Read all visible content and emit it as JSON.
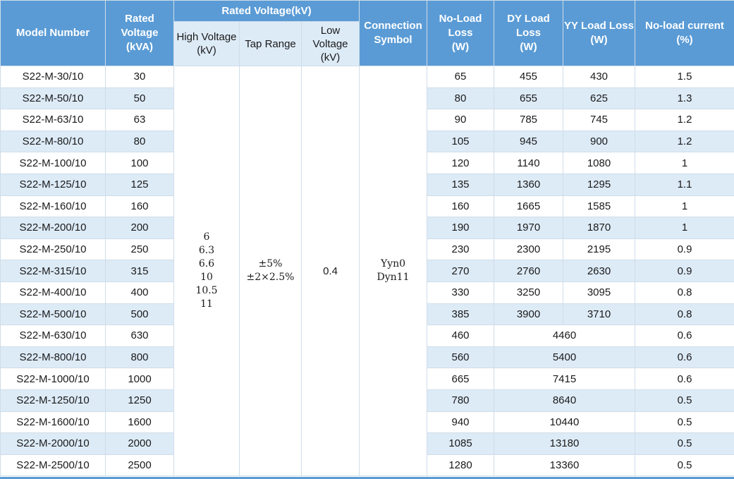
{
  "header": {
    "model_number": "Model Number",
    "rated_capacity": "Rated\nVoltage\n(kVA)",
    "rated_voltage_group": "Rated Voltage(kV)",
    "high_voltage": "High Voltage\n(kV)",
    "tap_range": "Tap Range",
    "low_voltage": "Low\nVoltage\n(kV)",
    "connection_symbol": "Connection\nSymbol",
    "no_load_loss": "No-Load\nLoss\n(W)",
    "dy_load_loss": "DY Load\nLoss\n(W)",
    "yy_load_loss": "YY Load Loss\n(W)",
    "no_load_current": "No-load current\n(%)"
  },
  "merged": {
    "high_voltage_values": "6\n6.3\n6.6\n10\n10.5\n11",
    "tap_range_values": "±5%\n±2×2.5%",
    "low_voltage_value": "0.4",
    "connection_values": "Yyn0\nDyn11"
  },
  "rows_split": [
    {
      "model": "S22-M-30/10",
      "kva": "30",
      "no_load": "65",
      "dy": "455",
      "yy": "430",
      "current": "1.5"
    },
    {
      "model": "S22-M-50/10",
      "kva": "50",
      "no_load": "80",
      "dy": "655",
      "yy": "625",
      "current": "1.3"
    },
    {
      "model": "S22-M-63/10",
      "kva": "63",
      "no_load": "90",
      "dy": "785",
      "yy": "745",
      "current": "1.2"
    },
    {
      "model": "S22-M-80/10",
      "kva": "80",
      "no_load": "105",
      "dy": "945",
      "yy": "900",
      "current": "1.2"
    },
    {
      "model": "S22-M-100/10",
      "kva": "100",
      "no_load": "120",
      "dy": "1140",
      "yy": "1080",
      "current": "1"
    },
    {
      "model": "S22-M-125/10",
      "kva": "125",
      "no_load": "135",
      "dy": "1360",
      "yy": "1295",
      "current": "1.1"
    },
    {
      "model": "S22-M-160/10",
      "kva": "160",
      "no_load": "160",
      "dy": "1665",
      "yy": "1585",
      "current": "1"
    },
    {
      "model": "S22-M-200/10",
      "kva": "200",
      "no_load": "190",
      "dy": "1970",
      "yy": "1870",
      "current": "1"
    },
    {
      "model": "S22-M-250/10",
      "kva": "250",
      "no_load": "230",
      "dy": "2300",
      "yy": "2195",
      "current": "0.9"
    },
    {
      "model": "S22-M-315/10",
      "kva": "315",
      "no_load": "270",
      "dy": "2760",
      "yy": "2630",
      "current": "0.9"
    },
    {
      "model": "S22-M-400/10",
      "kva": "400",
      "no_load": "330",
      "dy": "3250",
      "yy": "3095",
      "current": "0.8"
    },
    {
      "model": "S22-M-500/10",
      "kva": "500",
      "no_load": "385",
      "dy": "3900",
      "yy": "3710",
      "current": "0.8"
    }
  ],
  "rows_merged": [
    {
      "model": "S22-M-630/10",
      "kva": "630",
      "no_load": "460",
      "load": "4460",
      "current": "0.6"
    },
    {
      "model": "S22-M-800/10",
      "kva": "800",
      "no_load": "560",
      "load": "5400",
      "current": "0.6"
    },
    {
      "model": "S22-M-1000/10",
      "kva": "1000",
      "no_load": "665",
      "load": "7415",
      "current": "0.6"
    },
    {
      "model": "S22-M-1250/10",
      "kva": "1250",
      "no_load": "780",
      "load": "8640",
      "current": "0.5"
    },
    {
      "model": "S22-M-1600/10",
      "kva": "1600",
      "no_load": "940",
      "load": "10440",
      "current": "0.5"
    },
    {
      "model": "S22-M-2000/10",
      "kva": "2000",
      "no_load": "1085",
      "load": "13180",
      "current": "0.5"
    },
    {
      "model": "S22-M-2500/10",
      "kva": "2500",
      "no_load": "1280",
      "load": "13360",
      "current": "0.5"
    }
  ],
  "colors": {
    "header_blue": "#5a9bd5",
    "light_blue": "#ddebf7",
    "border": "#cfdde9"
  }
}
